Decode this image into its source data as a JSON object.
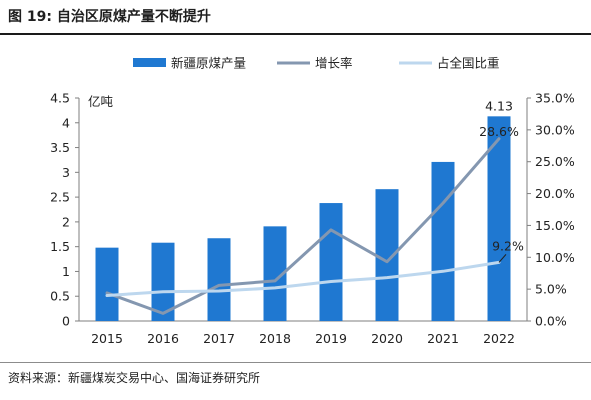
{
  "figure": {
    "title": "图 19:  自治区原煤产量不断提升",
    "source": "资料来源：新疆煤炭交易中心、国海证券研究所"
  },
  "chart_data": {
    "type": "bar",
    "categories": [
      "2015",
      "2016",
      "2017",
      "2018",
      "2019",
      "2020",
      "2021",
      "2022"
    ],
    "series": [
      {
        "name": "新疆原煤产量",
        "type": "bar",
        "axis": "left",
        "color": "#1f78d1",
        "values": [
          1.48,
          1.58,
          1.67,
          1.91,
          2.38,
          2.66,
          3.21,
          4.13
        ]
      },
      {
        "name": "增长率",
        "type": "line",
        "axis": "right",
        "color": "#8497b0",
        "values": [
          0.044,
          0.012,
          0.056,
          0.063,
          0.143,
          0.093,
          0.185,
          0.286
        ]
      },
      {
        "name": "占全国比重",
        "type": "line",
        "axis": "right",
        "color": "#bdd7ee",
        "values": [
          0.04,
          0.046,
          0.047,
          0.052,
          0.062,
          0.068,
          0.078,
          0.092
        ]
      }
    ],
    "left_axis": {
      "unit_label": "亿吨",
      "ylim": [
        0,
        4.5
      ],
      "ticks": [
        "0",
        "0.5",
        "1",
        "1.5",
        "2",
        "2.5",
        "3",
        "3.5",
        "4",
        "4.5"
      ]
    },
    "right_axis": {
      "ylim": [
        0,
        0.35
      ],
      "ticks": [
        "0.0%",
        "5.0%",
        "10.0%",
        "15.0%",
        "20.0%",
        "25.0%",
        "30.0%",
        "35.0%"
      ]
    },
    "annotations": [
      {
        "series": "新疆原煤产量",
        "category": "2022",
        "text": "4.13"
      },
      {
        "series": "增长率",
        "category": "2022",
        "text": "28.6%"
      },
      {
        "series": "占全国比重",
        "category": "2022",
        "text": "9.2%"
      }
    ],
    "legend_position": "top",
    "grid": false
  }
}
